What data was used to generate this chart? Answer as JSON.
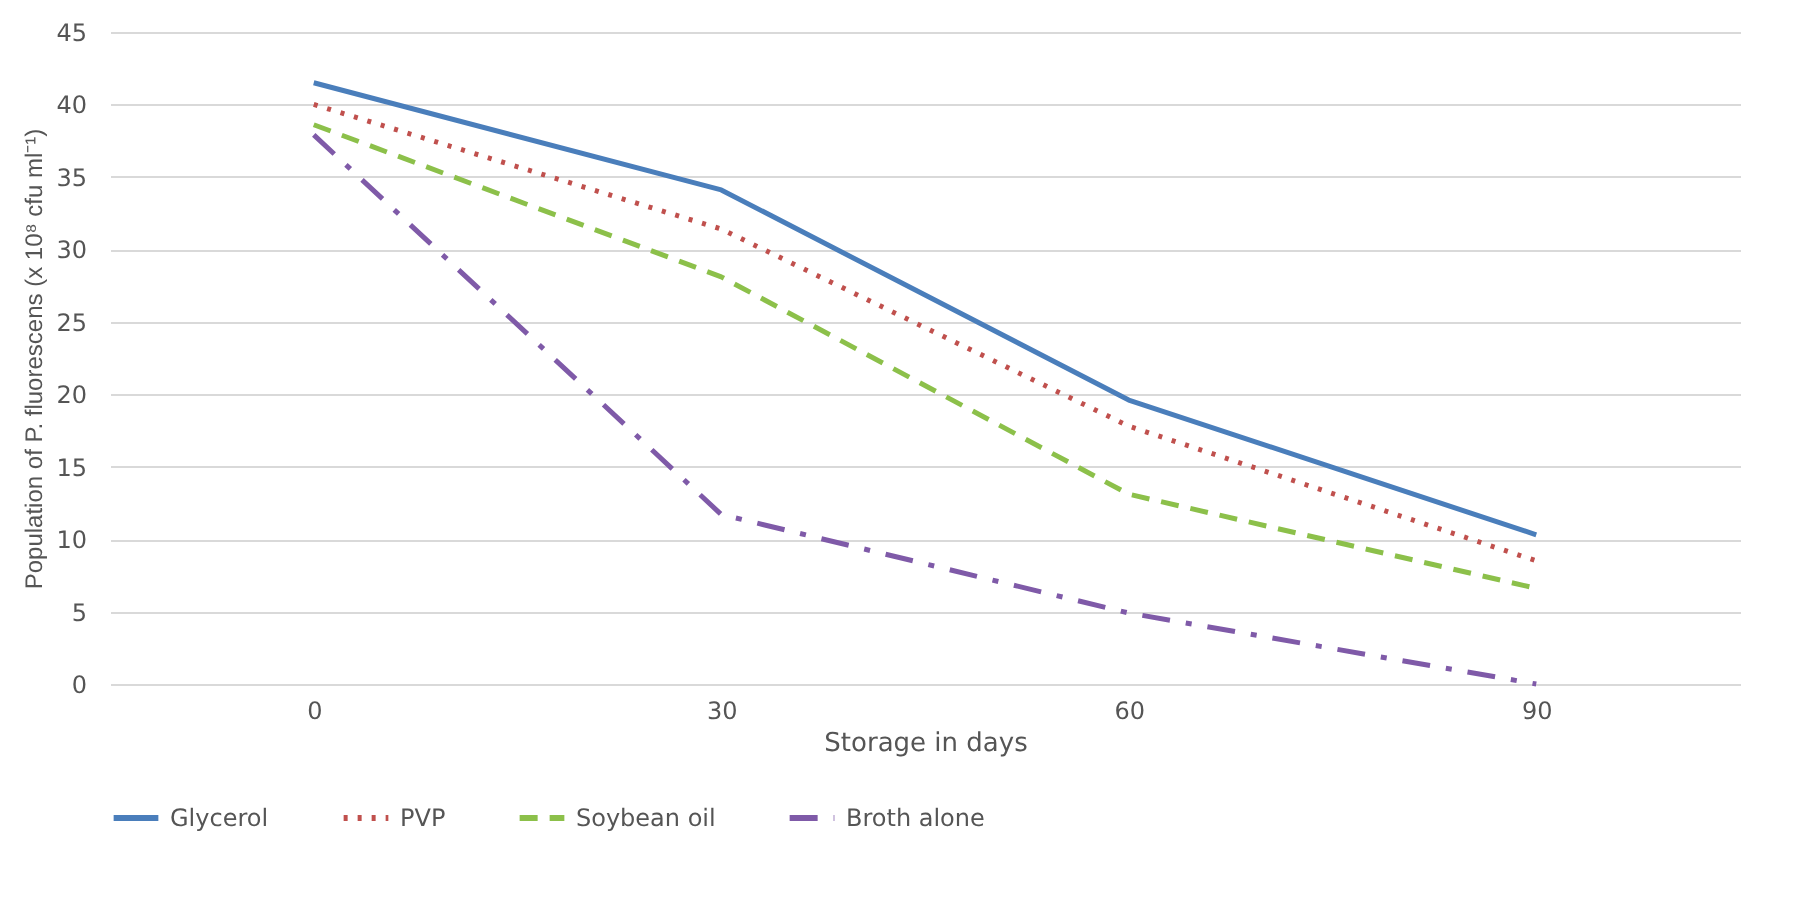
{
  "chart_data": {
    "type": "line",
    "xlabel": "Storage in days",
    "ylabel": "Population of P. fluorescens (x 10⁸ cfu ml⁻¹)",
    "categories": [
      "0",
      "30",
      "60",
      "90"
    ],
    "series": [
      {
        "name": "Glycerol",
        "color": "#4a7ebb",
        "line_style": "solid",
        "values": [
          41.5,
          34.1,
          19.6,
          10.3
        ]
      },
      {
        "name": "PVP",
        "color": "#c0504d",
        "line_style": "dotted",
        "values": [
          40.0,
          31.4,
          17.8,
          8.5
        ]
      },
      {
        "name": "Soybean oil",
        "color": "#8cc04a",
        "line_style": "dashed",
        "values": [
          38.6,
          28.1,
          13.1,
          6.6
        ]
      },
      {
        "name": "Broth alone",
        "color": "#7f5aa8",
        "line_style": "dashdot",
        "values": [
          37.9,
          11.7,
          4.9,
          0
        ]
      }
    ],
    "ylim": [
      0,
      45
    ],
    "yticks": [
      0,
      5,
      10,
      15,
      20,
      25,
      30,
      35,
      40,
      45
    ],
    "grid": "y",
    "legend": "bottom",
    "marker": "none"
  }
}
